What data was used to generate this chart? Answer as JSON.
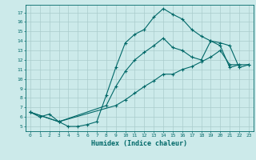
{
  "xlabel": "Humidex (Indice chaleur)",
  "bg_color": "#cceaea",
  "grid_color": "#aacccc",
  "line_color": "#006868",
  "xlim": [
    -0.5,
    23.5
  ],
  "ylim": [
    4.5,
    17.8
  ],
  "yticks": [
    5,
    6,
    7,
    8,
    9,
    10,
    11,
    12,
    13,
    14,
    15,
    16,
    17
  ],
  "xticks": [
    0,
    1,
    2,
    3,
    4,
    5,
    6,
    7,
    8,
    9,
    10,
    11,
    12,
    13,
    14,
    15,
    16,
    17,
    18,
    19,
    20,
    21,
    22,
    23
  ],
  "line1_x": [
    0,
    1,
    2,
    3,
    4,
    5,
    6,
    7,
    8,
    9,
    10,
    11,
    12,
    13,
    14,
    15,
    16,
    17,
    18,
    19,
    20,
    21,
    22
  ],
  "line1_y": [
    6.5,
    6.0,
    6.3,
    5.5,
    5.0,
    5.0,
    5.2,
    5.5,
    8.3,
    11.2,
    13.8,
    14.7,
    15.2,
    16.5,
    17.4,
    16.8,
    16.3,
    15.2,
    14.5,
    14.0,
    13.5,
    11.2,
    11.5
  ],
  "line2_x": [
    0,
    3,
    8,
    9,
    10,
    11,
    12,
    13,
    14,
    15,
    16,
    17,
    18,
    19,
    20,
    21,
    22,
    23
  ],
  "line2_y": [
    6.5,
    5.5,
    7.2,
    9.2,
    10.8,
    12.0,
    12.8,
    13.5,
    14.3,
    13.3,
    13.0,
    12.3,
    12.0,
    14.0,
    13.8,
    13.5,
    11.2,
    11.5
  ],
  "line3_x": [
    0,
    3,
    9,
    10,
    11,
    12,
    13,
    14,
    15,
    16,
    17,
    18,
    19,
    20,
    21,
    22,
    23
  ],
  "line3_y": [
    6.5,
    5.5,
    7.2,
    7.8,
    8.5,
    9.2,
    9.8,
    10.5,
    10.5,
    11.0,
    11.3,
    11.8,
    12.3,
    13.0,
    11.5,
    11.5,
    11.5
  ]
}
